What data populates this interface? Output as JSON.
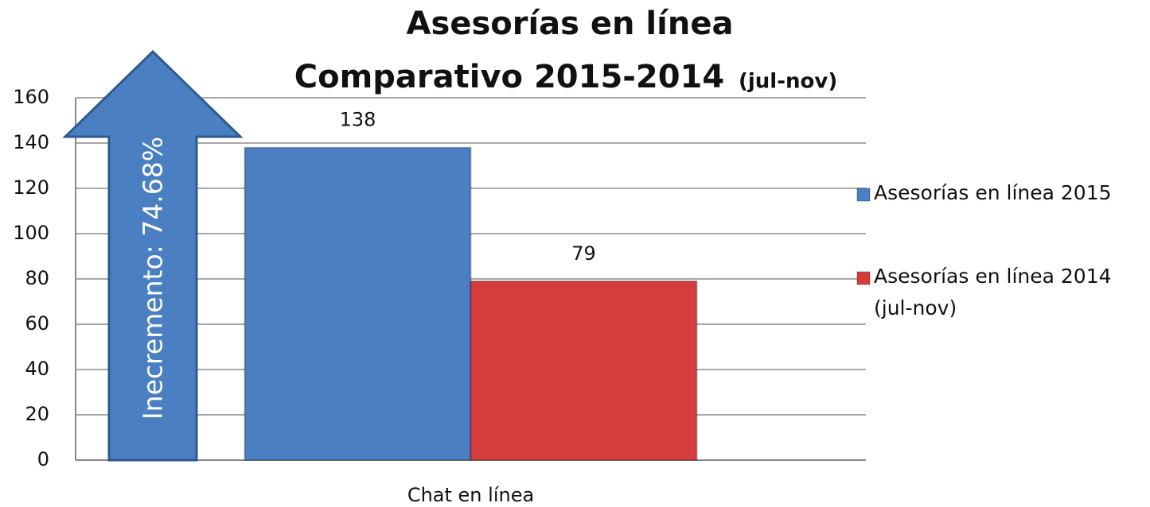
{
  "chart_data": {
    "type": "bar",
    "title": "Asesorías en línea",
    "subtitle": "Comparativo 2015-2014",
    "subtitle_note": "(jul-nov)",
    "annotation": "Inecremento: 74.68%",
    "categories": [
      "Chat en línea"
    ],
    "series": [
      {
        "name": "Asesorías en línea 2015",
        "color": "#4a7fc1",
        "values": [
          138
        ]
      },
      {
        "name": "Asesorías en línea 2014 (jul-nov)",
        "color": "#d43d3c",
        "values": [
          79
        ]
      }
    ],
    "ylim": [
      0,
      160
    ],
    "yticks": [
      0,
      20,
      40,
      60,
      80,
      100,
      120,
      140,
      160
    ],
    "grid": true,
    "legend": "right"
  }
}
